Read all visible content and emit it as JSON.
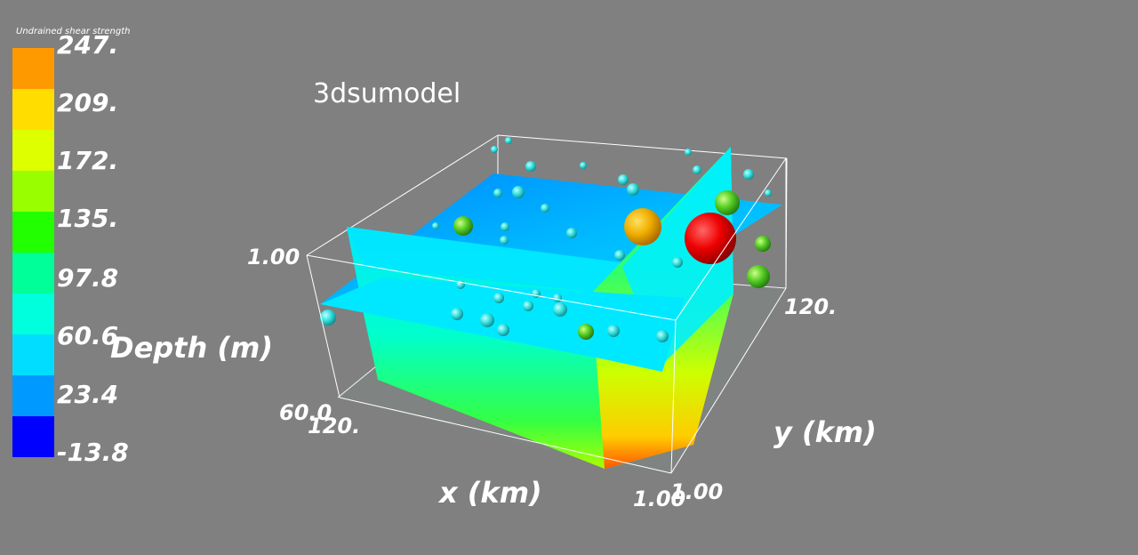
{
  "title": "3dsumodel",
  "colorbar": {
    "title": "Undrained shear strength",
    "ticks": [
      "247.",
      "209.",
      "172.",
      "135.",
      "97.8",
      "60.6",
      "23.4",
      "-13.8"
    ],
    "colors": [
      "#ff9900",
      "#ffdd00",
      "#ddff00",
      "#99ff00",
      "#22ff00",
      "#00ff99",
      "#00ffdd",
      "#00ddff",
      "#0099ff",
      "#0000ff"
    ]
  },
  "axes": {
    "depth_label": "Depth (m)",
    "depth_ticks": [
      "1.00",
      "60.0"
    ],
    "x_label": "x (km)",
    "x_ticks": [
      "120.",
      "1.00"
    ],
    "y_label": "y (km)",
    "y_ticks": [
      "120.",
      "1.00"
    ]
  }
}
